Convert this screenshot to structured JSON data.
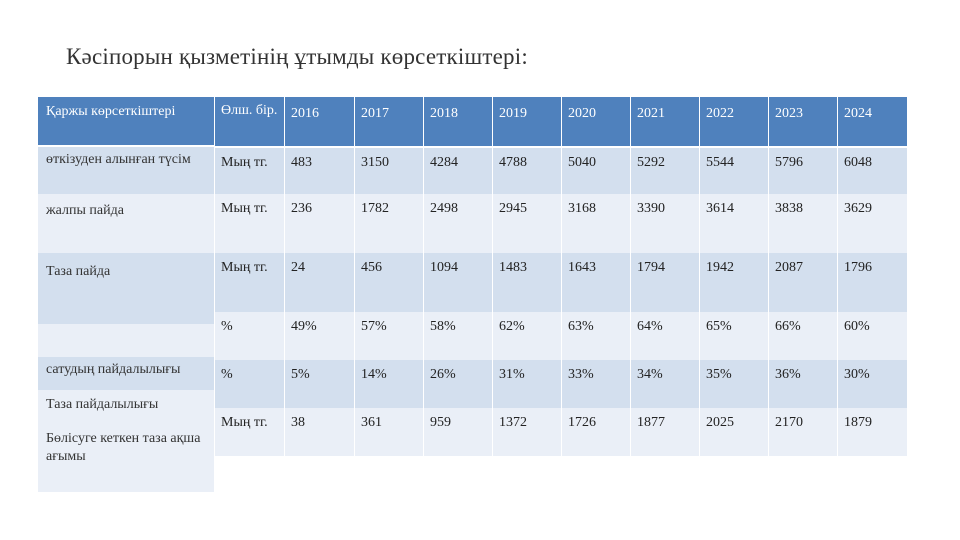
{
  "title": "Кәсіпорын қызметінің ұтымды көрсеткіштері:",
  "left_header": "Қаржы көрсеткіштері",
  "left_labels": [
    "өткізуден алынған түсім",
    "жалпы пайда",
    "Таза пайда",
    "",
    "сатудың пайдалылығы",
    "Таза пайдалылығы",
    "Бөлісуге кеткен таза ақша ағымы"
  ],
  "unit_header": "Өлш. бір.",
  "years": [
    "2016",
    "2017",
    "2018",
    "2019",
    "2020",
    "2021",
    "2022",
    "2023",
    "2024"
  ],
  "rows": [
    {
      "unit": "Мың тг.",
      "values": [
        "483",
        "3150",
        "4284",
        "4788",
        "5040",
        "5292",
        "5544",
        "5796",
        "6048"
      ]
    },
    {
      "unit": "Мың тг.",
      "values": [
        "236",
        "1782",
        "2498",
        "2945",
        "3168",
        "3390",
        "3614",
        "3838",
        "3629"
      ]
    },
    {
      "unit": "Мың тг.",
      "values": [
        "24",
        "456",
        "1094",
        "1483",
        "1643",
        "1794",
        "1942",
        "2087",
        "1796"
      ]
    },
    {
      "unit": "%",
      "values": [
        "49%",
        "57%",
        "58%",
        "62%",
        "63%",
        "64%",
        "65%",
        "66%",
        "60%"
      ]
    },
    {
      "unit": "%",
      "values": [
        "5%",
        "14%",
        "26%",
        "31%",
        "33%",
        "34%",
        "35%",
        "36%",
        "30%"
      ]
    },
    {
      "unit": "Мың тг.",
      "values": [
        "38",
        "361",
        "959",
        "1372",
        "1726",
        "1877",
        "2025",
        "2170",
        "1879"
      ]
    }
  ]
}
